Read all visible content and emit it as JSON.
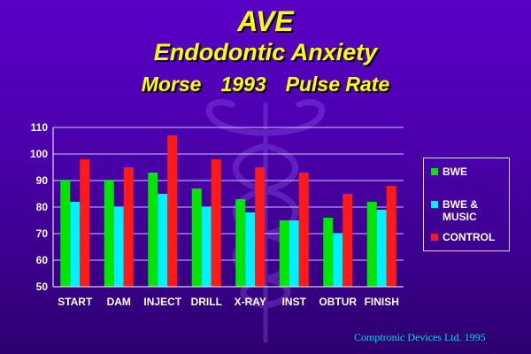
{
  "header": {
    "title": "AVE",
    "subtitle": "Endodontic Anxiety",
    "subtitle2_author": "Morse",
    "subtitle2_year": "1993",
    "subtitle2_metric": "Pulse Rate"
  },
  "footer": "Comptronic Devices Ltd. 1995",
  "colors": {
    "BWE": "#00e600",
    "BWE & MUSIC": "#00f0ff",
    "CONTROL": "#ff1a1a",
    "grid": "#c8c8ff",
    "text": "#ffffff"
  },
  "chart_data": {
    "type": "bar",
    "categories": [
      "START",
      "DAM",
      "INJECT",
      "DRILL",
      "X-RAY",
      "INST",
      "OBTUR",
      "FINISH"
    ],
    "series": [
      {
        "name": "BWE",
        "values": [
          90,
          90,
          93,
          87,
          83,
          75,
          76,
          82
        ]
      },
      {
        "name": "BWE & MUSIC",
        "values": [
          82,
          80,
          85,
          80,
          78,
          75,
          70,
          79
        ]
      },
      {
        "name": "CONTROL",
        "values": [
          98,
          95,
          107,
          98,
          95,
          93,
          85,
          88
        ]
      }
    ],
    "ylim": [
      50,
      110
    ],
    "yticks": [
      50,
      60,
      70,
      80,
      90,
      100,
      110
    ],
    "grid": true,
    "legend": "right",
    "legend_labels": [
      "BWE",
      "BWE &\nMUSIC",
      "CONTROL"
    ]
  }
}
